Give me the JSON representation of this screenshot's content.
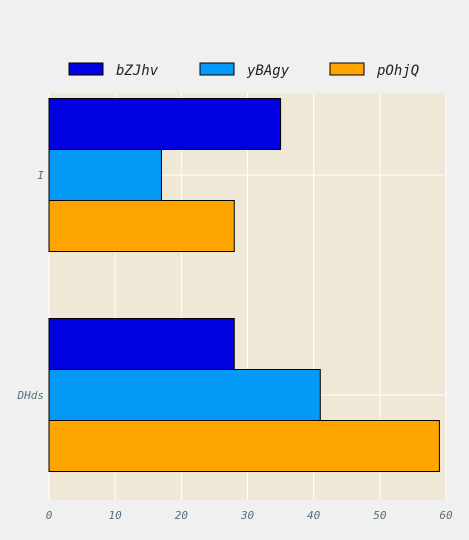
{
  "chart_data": {
    "type": "bar",
    "orientation": "horizontal",
    "title": "",
    "xlabel": "",
    "ylabel": "",
    "categories": [
      "I",
      "DHds"
    ],
    "series": [
      {
        "name": "bZJhv",
        "values": [
          35,
          28
        ]
      },
      {
        "name": "yBAgy",
        "values": [
          17,
          41
        ]
      },
      {
        "name": "pOhjQ",
        "values": [
          28,
          59
        ]
      }
    ],
    "xlim": [
      0,
      60
    ],
    "xticks": [
      "0",
      "10",
      "20",
      "30",
      "40",
      "50",
      "60"
    ],
    "grid": true,
    "legend_position": "top"
  },
  "colors": {
    "page_background": "#f0f0f0",
    "plot_background": "#efe8d7",
    "grid": "#ffffff",
    "text": "#5a6f7a",
    "series": [
      "#0000e0",
      "#0399f5",
      "#ffa500"
    ]
  }
}
